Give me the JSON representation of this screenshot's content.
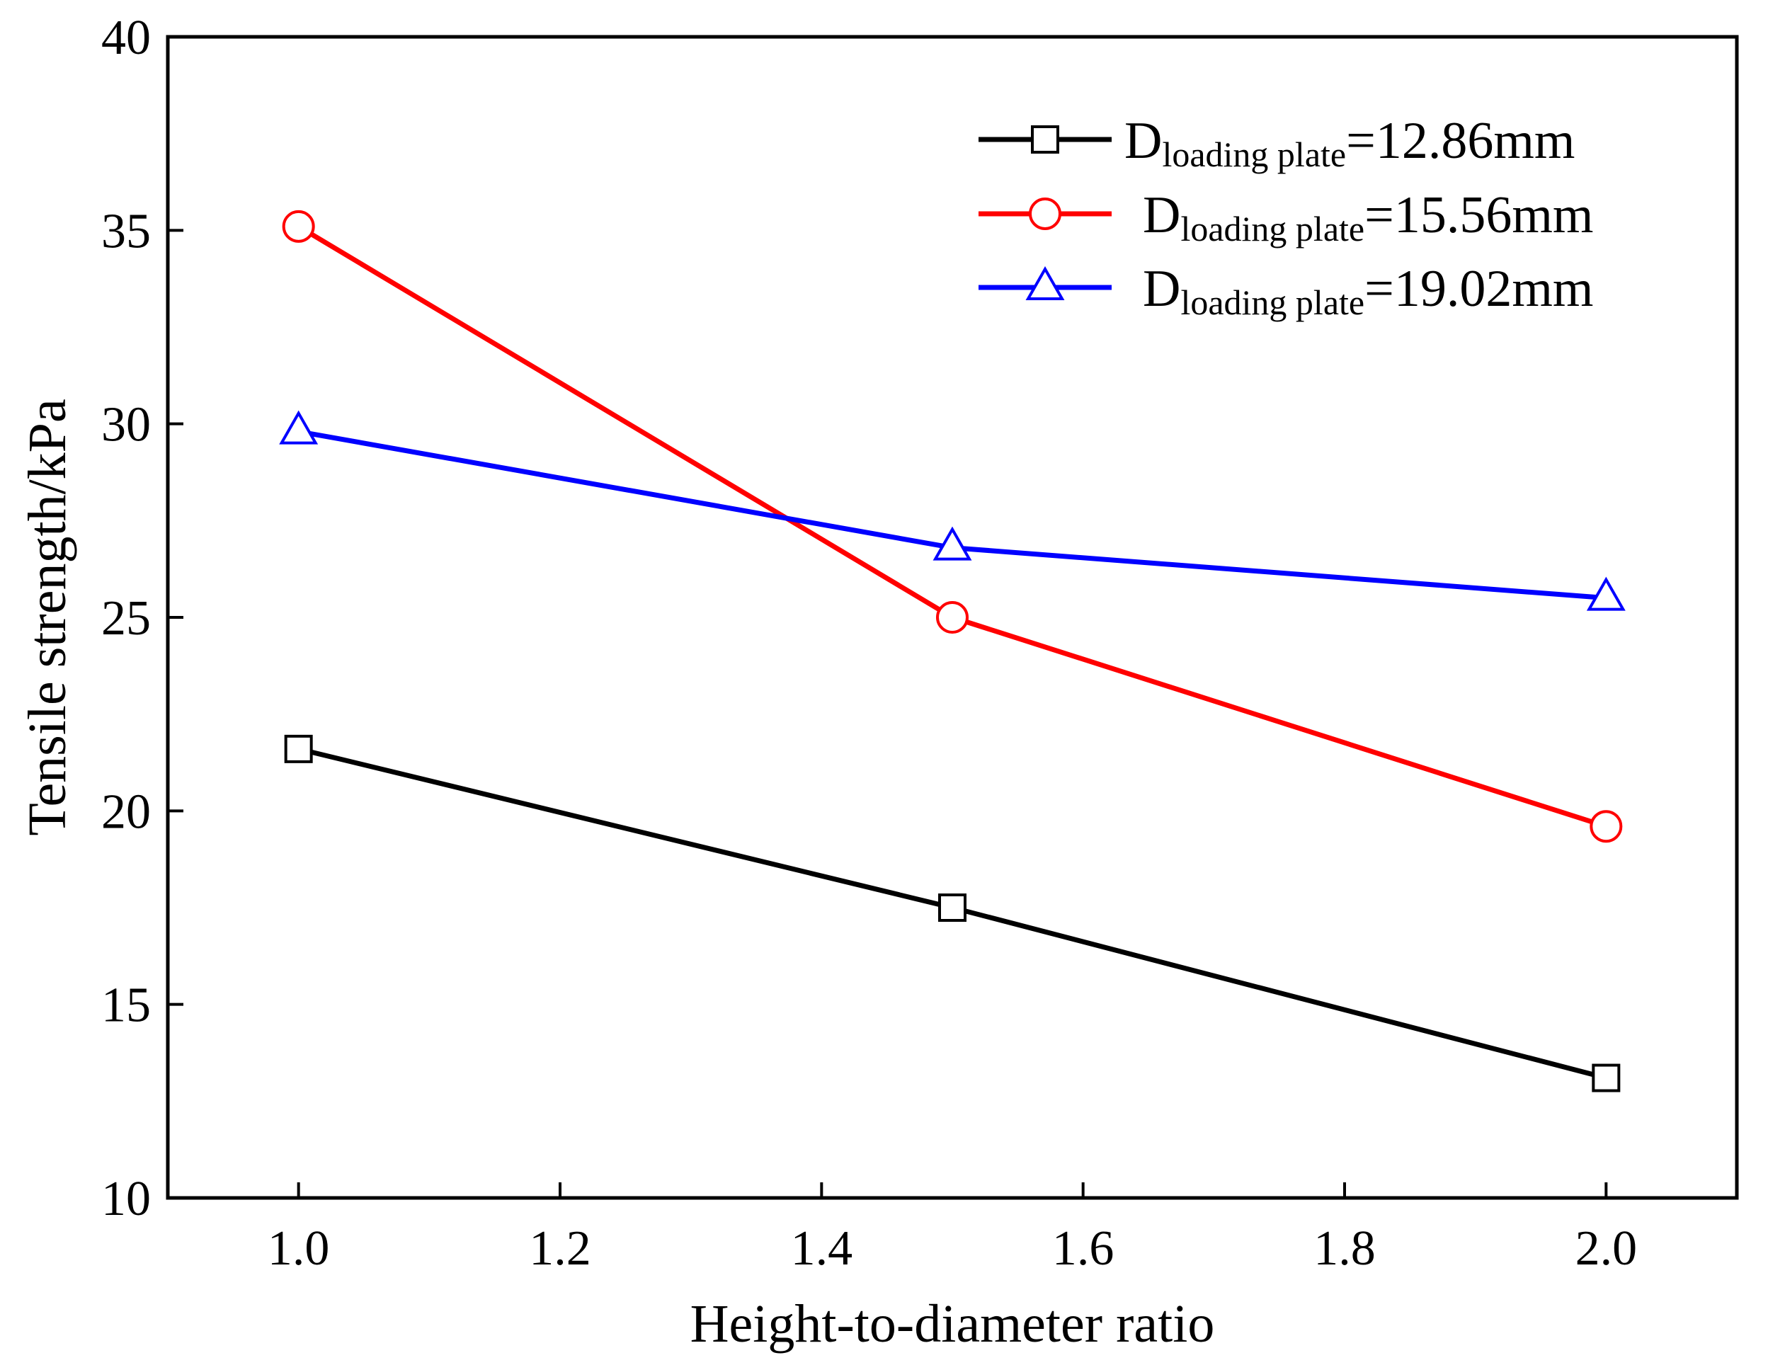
{
  "chart_data": {
    "type": "line",
    "title": "",
    "xlabel": "Height-to-diameter ratio",
    "ylabel": "Tensile strength/kPa",
    "xlim": [
      0.9,
      2.1
    ],
    "ylim": [
      10,
      40
    ],
    "x": [
      1.0,
      1.5,
      2.0
    ],
    "xticks": [
      "1.0",
      "1.2",
      "1.4",
      "1.6",
      "1.8",
      "2.0"
    ],
    "yticks": [
      "10",
      "15",
      "20",
      "25",
      "30",
      "35",
      "40"
    ],
    "grid": false,
    "legend_position": "top-right",
    "series": [
      {
        "name": "Dloading plate=12.86mm",
        "name_main": "D",
        "name_sub": "loading plate",
        "name_value": "=12.86mm",
        "marker": "square",
        "color": "#000000",
        "values": [
          21.6,
          17.5,
          13.1
        ]
      },
      {
        "name": "Dloading plate=15.56mm",
        "name_main": "D",
        "name_sub": "loading plate",
        "name_value": "=15.56mm",
        "marker": "circle",
        "color": "#ff0000",
        "values": [
          35.1,
          25.0,
          19.6
        ]
      },
      {
        "name": "Dloading plate=19.02mm",
        "name_main": "D",
        "name_sub": "loading plate",
        "name_value": "=19.02mm",
        "marker": "triangle",
        "color": "#0000ff",
        "values": [
          29.8,
          26.8,
          25.5
        ]
      }
    ]
  }
}
